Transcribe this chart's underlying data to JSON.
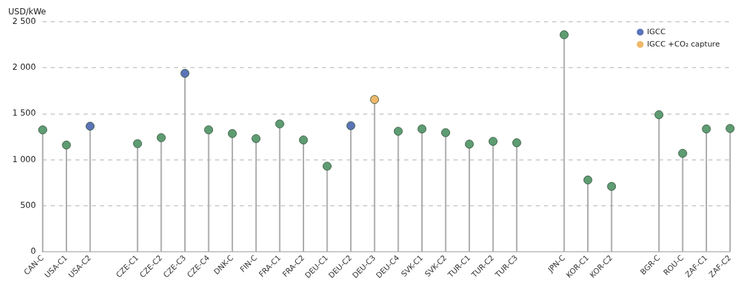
{
  "chart_data": {
    "type": "lollipop",
    "ylabel": "USD/kWe",
    "categories": [
      "CAN-C",
      "USA-C1",
      "USA-C2",
      null,
      "CZE-C1",
      "CZE-C2",
      "CZE-C3",
      "CZE-C4",
      "DNK-C",
      "FIN-C",
      "FRA-C1",
      "FRA-C2",
      "DEU-C1",
      "DEU-C2",
      "DEU-C3",
      "DEU-C4",
      "SVK-C1",
      "SVK-C2",
      "TUR-C1",
      "TUR-C2",
      "TUR-C3",
      null,
      "JPN-C",
      "KOR-C1",
      "KOR-C2",
      null,
      "BGR-C",
      "ROU-C",
      "ZAF-C1",
      "ZAF-C2"
    ],
    "series": [
      {
        "color": "#5e9c72",
        "values": [
          1325,
          1160,
          null,
          null,
          1175,
          1240,
          null,
          1325,
          1285,
          1230,
          1390,
          1215,
          930,
          null,
          null,
          1310,
          1335,
          1295,
          1170,
          1200,
          1185,
          null,
          2360,
          780,
          710,
          null,
          1490,
          1070,
          1335,
          1340
        ]
      },
      {
        "name": "IGCC",
        "color": "#5b73b8",
        "values": [
          null,
          null,
          1365,
          null,
          null,
          null,
          1940,
          null,
          null,
          null,
          null,
          null,
          null,
          1370,
          null,
          null,
          null,
          null,
          null,
          null,
          null,
          null,
          null,
          null,
          null,
          null,
          null,
          null,
          null,
          null
        ]
      },
      {
        "name": "IGCC +CO₂ capture",
        "color": "#f0b86a",
        "values": [
          null,
          null,
          null,
          null,
          null,
          null,
          null,
          null,
          null,
          null,
          null,
          null,
          null,
          null,
          1655,
          null,
          null,
          null,
          null,
          null,
          null,
          null,
          null,
          null,
          null,
          null,
          null,
          null,
          null,
          null
        ]
      }
    ],
    "ylim": [
      0,
      2500
    ],
    "yticks": [
      {
        "value": 0,
        "label": "0"
      },
      {
        "value": 500,
        "label": "500"
      },
      {
        "value": 1000,
        "label": "1 000"
      },
      {
        "value": 1500,
        "label": "1 500"
      },
      {
        "value": 2000,
        "label": "2 000"
      },
      {
        "value": 2500,
        "label": "2 500"
      }
    ],
    "grid": "y",
    "legend": "top right",
    "marker": "circle"
  }
}
